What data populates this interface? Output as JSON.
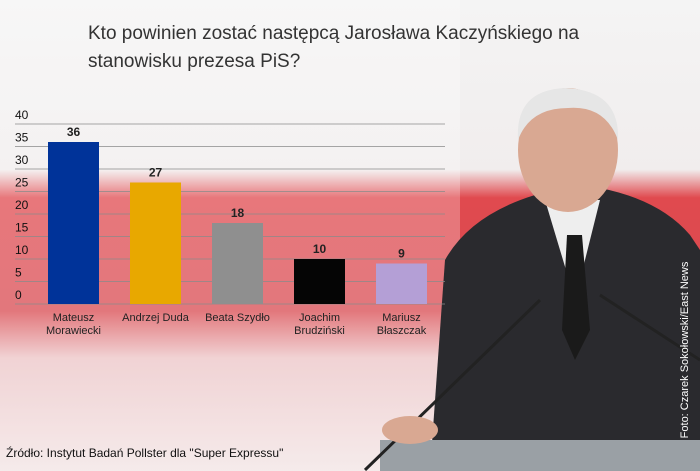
{
  "chart_data": {
    "type": "bar",
    "title": "Kto powinien zostać następcą Jarosława Kaczyńskiego na stanowisku prezesa PiS?",
    "categories": [
      "Mateusz Morawiecki",
      "Andrzej Duda",
      "Beata Szydło",
      "Joachim Brudziński",
      "Mariusz Błaszczak"
    ],
    "values": [
      36,
      27,
      18,
      10,
      9
    ],
    "colors": [
      "#003399",
      "#e8a800",
      "#8f8f8f",
      "#050505",
      "#b49fd6"
    ],
    "ylim": [
      0,
      40
    ],
    "yticks": [
      0,
      5,
      10,
      15,
      20,
      25,
      30,
      35,
      40
    ],
    "grid": true,
    "source": "Źródło: Instytut Badań Pollster dla \"Super Expressu\"",
    "photo_credit": "Foto: Czarek Sokołowski/East News"
  }
}
